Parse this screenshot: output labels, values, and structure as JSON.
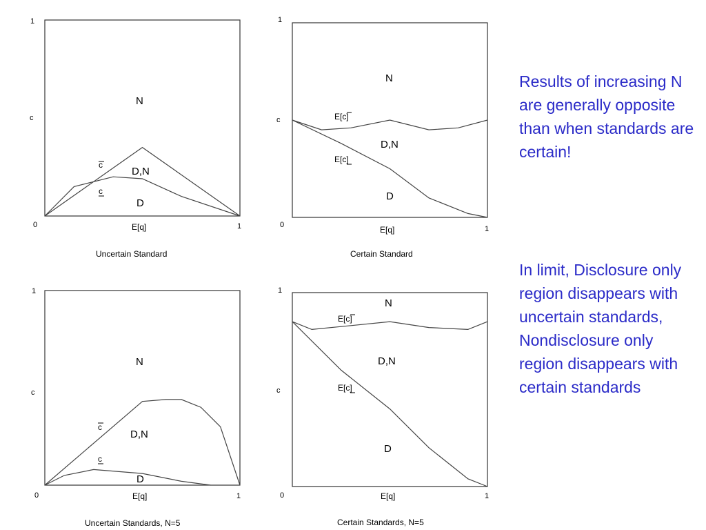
{
  "panels": [
    {
      "caption": "Uncertain Standard",
      "y_top_label": "1",
      "y_label": "c",
      "origin_label": "0",
      "x_label": "E[q]",
      "x_right_label": "1",
      "regions": [
        "N",
        "D,N",
        "D"
      ],
      "curve_labels": [
        "c",
        "c"
      ],
      "curves": [
        {
          "name": "upper",
          "x": [
            0,
            0.5,
            1
          ],
          "y": [
            0,
            0.35,
            0
          ]
        },
        {
          "name": "lower",
          "x": [
            0,
            0.15,
            0.35,
            0.5,
            0.7,
            1
          ],
          "y": [
            0,
            0.15,
            0.2,
            0.19,
            0.1,
            0
          ]
        }
      ]
    },
    {
      "caption": "Certain Standard",
      "y_top_label": "1",
      "y_label": "c",
      "origin_label": "0",
      "x_label": "E[q]",
      "x_right_label": "1",
      "regions": [
        "N",
        "D,N",
        "D"
      ],
      "curve_labels": [
        "E[c]",
        "E[c]"
      ],
      "curves": [
        {
          "name": "upper",
          "x": [
            0,
            0.15,
            0.3,
            0.5,
            0.7,
            0.85,
            1
          ],
          "y": [
            0.5,
            0.45,
            0.46,
            0.5,
            0.45,
            0.46,
            0.5
          ]
        },
        {
          "name": "lower",
          "x": [
            0,
            0.25,
            0.5,
            0.7,
            0.9,
            1
          ],
          "y": [
            0.5,
            0.38,
            0.25,
            0.1,
            0.02,
            0
          ]
        }
      ]
    },
    {
      "caption": "Uncertain Standards, N=5",
      "y_top_label": "1",
      "y_label": "c",
      "origin_label": "0",
      "x_label": "E[q]",
      "x_right_label": "1",
      "regions": [
        "N",
        "D,N",
        "D"
      ],
      "curve_labels": [
        "c",
        "c"
      ],
      "curves": [
        {
          "name": "upper",
          "x": [
            0,
            0.5,
            0.62,
            0.7,
            0.8,
            0.9,
            1
          ],
          "y": [
            0,
            0.43,
            0.44,
            0.44,
            0.4,
            0.3,
            0
          ]
        },
        {
          "name": "lower",
          "x": [
            0,
            0.1,
            0.25,
            0.5,
            0.7,
            0.85
          ],
          "y": [
            0,
            0.05,
            0.08,
            0.06,
            0.02,
            0
          ]
        }
      ]
    },
    {
      "caption": "Certain Standards, N=5",
      "y_top_label": "1",
      "y_label": "c",
      "origin_label": "0",
      "x_label": "E[q]",
      "x_right_label": "1",
      "regions": [
        "N",
        "D,N",
        "D"
      ],
      "curve_labels": [
        "E[c]",
        "E[c]"
      ],
      "curves": [
        {
          "name": "upper",
          "x": [
            0,
            0.1,
            0.3,
            0.5,
            0.7,
            0.9,
            1
          ],
          "y": [
            0.85,
            0.81,
            0.83,
            0.85,
            0.82,
            0.81,
            0.85
          ]
        },
        {
          "name": "lower",
          "x": [
            0,
            0.25,
            0.5,
            0.7,
            0.9,
            1
          ],
          "y": [
            0.85,
            0.6,
            0.4,
            0.2,
            0.04,
            0
          ]
        }
      ]
    }
  ],
  "notes": [
    "Results of increasing N are generally opposite than when standards are certain!",
    "In limit, Disclosure only region disappears with uncertain standards, Nondisclosure only region disappears with certain standards"
  ]
}
